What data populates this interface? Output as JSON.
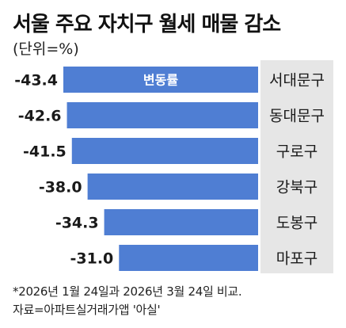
{
  "title": "서울 주요 자치구 월세 매물 감소",
  "unit_label": "(단위=%)",
  "legend_label": "변동률",
  "footnotes": [
    "*2026년 1월 24일과 2026년 3월 24일 비교.",
    "자료=아파트실거래가앱 '아실'"
  ],
  "colors": {
    "bar": "#4f7ed3",
    "label_bg": "#e6e6e6",
    "text": "#1a1a1a"
  },
  "chart_data": {
    "type": "bar",
    "orientation": "horizontal",
    "categories": [
      "서대문구",
      "동대문구",
      "구로구",
      "강북구",
      "도봉구",
      "마포구"
    ],
    "values": [
      -43.4,
      -42.6,
      -41.5,
      -38.0,
      -34.3,
      -31.0
    ],
    "value_labels": [
      "-43.4",
      "-42.6",
      "-41.5",
      "-38.0",
      "-34.3",
      "-31.0"
    ],
    "series": [
      {
        "name": "변동률",
        "values": [
          -43.4,
          -42.6,
          -41.5,
          -38.0,
          -34.3,
          -31.0
        ]
      }
    ],
    "title": "서울 주요 자치구 월세 매물 감소",
    "xlabel": "",
    "ylabel": "",
    "grid": false
  }
}
